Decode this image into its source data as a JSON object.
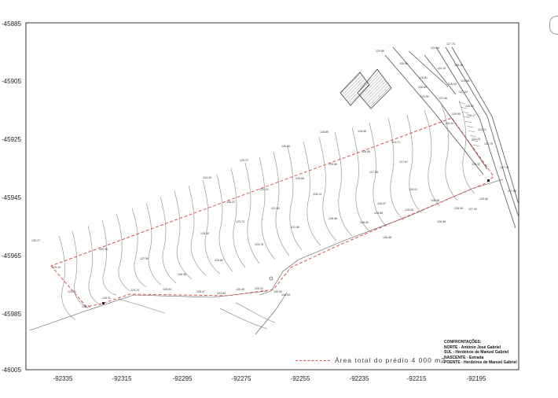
{
  "axes": {
    "y_ticks": [
      "-45885",
      "-45905",
      "-45925",
      "-45945",
      "-45965",
      "-45985",
      "-46005"
    ],
    "x_ticks": [
      "-92335",
      "-92315",
      "-92295",
      "-92275",
      "-92255",
      "-92235",
      "-92215",
      "-92195"
    ]
  },
  "legend": {
    "label": "Área total do prédio 4 000 m2"
  },
  "confrontacoes": {
    "title": "CONFRONTAÇÕES:",
    "norte": "NORTE - António José Gabriel",
    "sul": "SUL - Herdeiros de Manuel Gabriel",
    "nascente": "NASCENTE - Estrada",
    "poente": "POENTE - Herdeiros de Manuel Gabriel"
  },
  "elevations": [
    "129.89",
    "126.66",
    "124.81",
    "124.84",
    "124.10",
    "123.92",
    "127.74",
    "126.40",
    "127.64",
    "126.53",
    "123.66",
    "126.89",
    "127.46",
    "129.90",
    "126.62",
    "125.42",
    "128.17",
    "124.21",
    "124.20",
    "122.79",
    "125.32",
    "127.16",
    "125.66",
    "127.89",
    "130.27",
    "129.10",
    "120.81",
    "125.71",
    "125.31",
    "124.74",
    "126.94",
    "128.47",
    "124.65",
    "130.46",
    "129.31",
    "130.90",
    "130.53",
    "133.90",
    "127.59",
    "126.58",
    "125.05",
    "126.82",
    "126.22",
    "123.74",
    "125.72",
    "124.20",
    "123.76",
    "122.24",
    "121.82",
    "121.80",
    "125.68",
    "128.14",
    "128.89",
    "125.80",
    "128.56",
    "126.55",
    "124.71",
    "127.08",
    "127.67",
    "128.01",
    "126.58",
    "126.37",
    "126.85",
    "128.00",
    "126.48",
    "125.45",
    "128.08",
    "126.66",
    "126.06",
    "127.00",
    "126.65"
  ]
}
